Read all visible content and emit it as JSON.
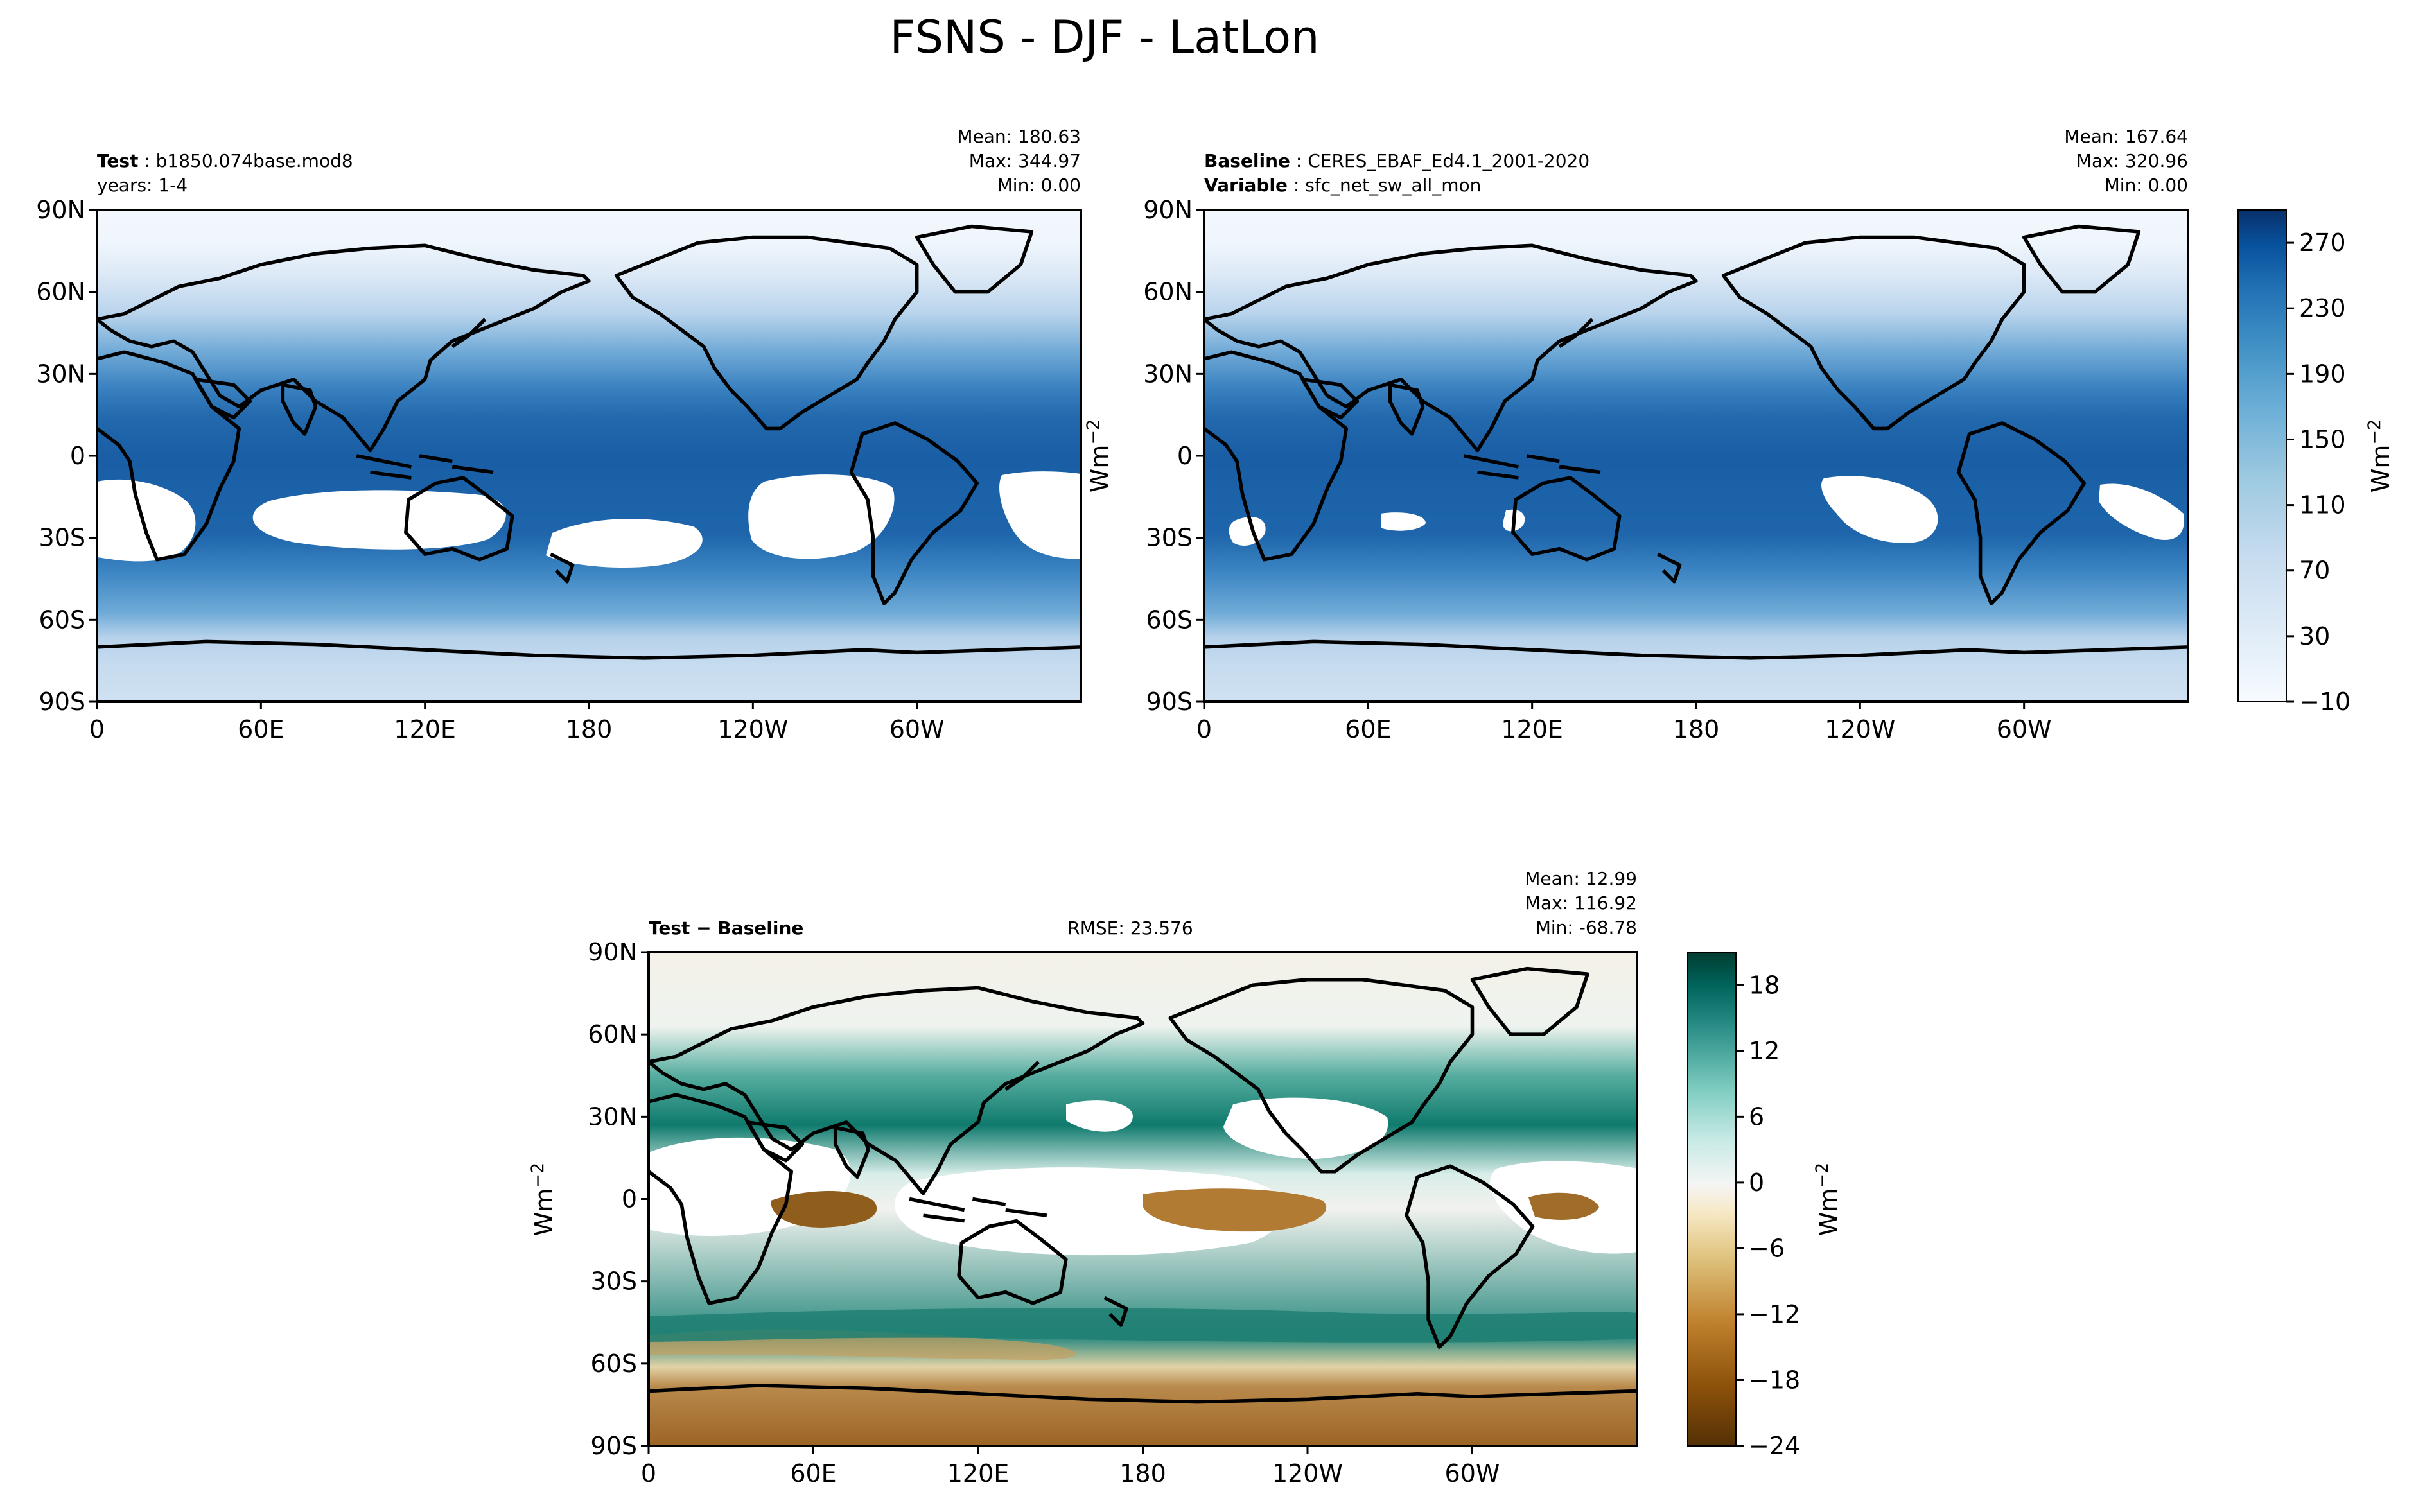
{
  "figure": {
    "title": "FSNS - DJF - LatLon"
  },
  "chart_data": [
    {
      "type": "heatmap",
      "panel": "test",
      "label_bold": "Test",
      "label_text": "b1850.074base.mod8",
      "label_line2": "years: 1-4",
      "stats": {
        "mean": "Mean: 180.63",
        "max": "Max: 344.97",
        "min": "Min:  0.00"
      },
      "x_ticks": [
        "0",
        "60E",
        "120E",
        "180",
        "120W",
        "60W"
      ],
      "y_ticks": [
        "90N",
        "60N",
        "30N",
        "0",
        "30S",
        "60S",
        "90S"
      ],
      "x_range": [
        0,
        360
      ],
      "y_range": [
        -90,
        90
      ]
    },
    {
      "type": "heatmap",
      "panel": "baseline",
      "label1_bold": "Baseline",
      "label1_text": "CERES_EBAF_Ed4.1_2001-2020",
      "label2_bold": "Variable",
      "label2_text": "sfc_net_sw_all_mon",
      "stats": {
        "mean": "Mean: 167.64",
        "max": "Max: 320.96",
        "min": "Min:  0.00"
      },
      "x_ticks": [
        "0",
        "60E",
        "120E",
        "180",
        "120W",
        "60W"
      ],
      "y_ticks": [
        "90N",
        "60N",
        "30N",
        "0",
        "30S",
        "60S",
        "90S"
      ],
      "colorbar": {
        "label": "Wm",
        "label_exp": "−2",
        "ticks": [
          "270",
          "230",
          "190",
          "150",
          "110",
          "70",
          "30",
          "−10"
        ],
        "tick_values": [
          270,
          230,
          190,
          150,
          110,
          70,
          30,
          -10
        ],
        "range": [
          -10,
          290
        ],
        "colormap": "Blues"
      },
      "ylabel": "Wm",
      "ylabel_exp": "−2"
    },
    {
      "type": "heatmap",
      "panel": "difference",
      "label_bold": "Test − Baseline",
      "rmse": "RMSE: 23.576",
      "stats": {
        "mean": "Mean: 12.99",
        "max": "Max: 116.92",
        "min": "Min: -68.78"
      },
      "x_ticks": [
        "0",
        "60E",
        "120E",
        "180",
        "120W",
        "60W"
      ],
      "y_ticks": [
        "90N",
        "60N",
        "30N",
        "0",
        "30S",
        "60S",
        "90S"
      ],
      "ylabel": "Wm",
      "ylabel_exp": "−2",
      "colorbar": {
        "label": "Wm",
        "label_exp": "−2",
        "ticks": [
          "18",
          "12",
          "6",
          "0",
          "−6",
          "−12",
          "−18",
          "−24"
        ],
        "tick_values": [
          18,
          12,
          6,
          0,
          -6,
          -12,
          -18,
          -24
        ],
        "range": [
          -24,
          21
        ],
        "colormap": "BrBG"
      }
    }
  ]
}
